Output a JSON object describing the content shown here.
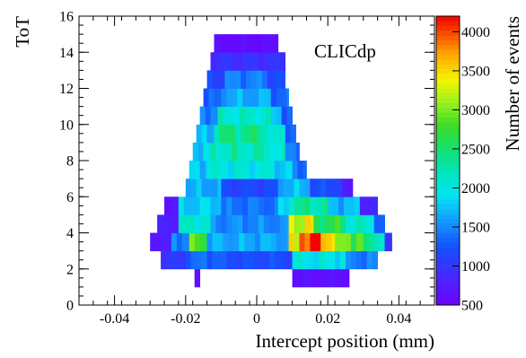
{
  "chart_data": {
    "type": "heatmap",
    "title": "",
    "label": "CLICdp",
    "xlabel": "Intercept position (mm)",
    "ylabel": "ToT",
    "colorbar_label": "Number of events",
    "xlim": [
      -0.05,
      0.05
    ],
    "ylim": [
      0,
      16
    ],
    "zlim": [
      500,
      4200
    ],
    "x_ticks": [
      -0.04,
      -0.02,
      0,
      0.02,
      0.04
    ],
    "x_tick_labels": [
      "-0.04",
      "-0.02",
      "0",
      "0.02",
      "0.04"
    ],
    "y_ticks": [
      0,
      2,
      4,
      6,
      8,
      10,
      12,
      14,
      16
    ],
    "y_tick_labels": [
      "0",
      "2",
      "4",
      "6",
      "8",
      "10",
      "12",
      "14",
      "16"
    ],
    "z_ticks": [
      500,
      1000,
      1500,
      2000,
      2500,
      3000,
      3500,
      4000
    ],
    "z_tick_labels": [
      "500",
      "1000",
      "1500",
      "2000",
      "2500",
      "3000",
      "3500",
      "4000"
    ],
    "bin_width": 0.0015,
    "rows": [
      {
        "tot": 1,
        "segments": [
          {
            "x0": -0.0175,
            "x1": -0.016,
            "v": 650
          },
          {
            "x0": 0.01,
            "x1": 0.026,
            "v": 650
          }
        ]
      },
      {
        "tot": 2,
        "segments": [
          {
            "x0": -0.027,
            "x1": -0.02,
            "v": 1000
          },
          {
            "x0": -0.02,
            "x1": -0.01,
            "v": 1350
          },
          {
            "x0": -0.01,
            "x1": 0.01,
            "v": 1200
          },
          {
            "x0": 0.01,
            "x1": 0.025,
            "v": 1950
          },
          {
            "x0": 0.025,
            "x1": 0.034,
            "v": 1450
          }
        ]
      },
      {
        "tot": 3,
        "segments": [
          {
            "x0": -0.03,
            "x1": -0.024,
            "v": 750
          },
          {
            "x0": -0.024,
            "x1": -0.019,
            "v": 1500
          },
          {
            "x0": -0.019,
            "x1": -0.014,
            "v": 2800
          },
          {
            "x0": -0.014,
            "x1": 0.009,
            "v": 1650
          },
          {
            "x0": 0.009,
            "x1": 0.012,
            "v": 3200
          },
          {
            "x0": 0.012,
            "x1": 0.018,
            "v": 4100
          },
          {
            "x0": 0.018,
            "x1": 0.022,
            "v": 3700
          },
          {
            "x0": 0.022,
            "x1": 0.03,
            "v": 2900
          },
          {
            "x0": 0.03,
            "x1": 0.036,
            "v": 2300
          },
          {
            "x0": 0.036,
            "x1": 0.038,
            "v": 900
          }
        ]
      },
      {
        "tot": 4,
        "segments": [
          {
            "x0": -0.028,
            "x1": -0.022,
            "v": 800
          },
          {
            "x0": -0.022,
            "x1": -0.013,
            "v": 2100
          },
          {
            "x0": -0.013,
            "x1": 0.009,
            "v": 1500
          },
          {
            "x0": 0.009,
            "x1": 0.016,
            "v": 3300
          },
          {
            "x0": 0.016,
            "x1": 0.025,
            "v": 2600
          },
          {
            "x0": 0.025,
            "x1": 0.033,
            "v": 2100
          },
          {
            "x0": 0.033,
            "x1": 0.036,
            "v": 1300
          }
        ]
      },
      {
        "tot": 5,
        "segments": [
          {
            "x0": -0.026,
            "x1": -0.022,
            "v": 700
          },
          {
            "x0": -0.022,
            "x1": -0.01,
            "v": 1800
          },
          {
            "x0": -0.01,
            "x1": 0.006,
            "v": 1400
          },
          {
            "x0": 0.006,
            "x1": 0.009,
            "v": 1800
          },
          {
            "x0": 0.009,
            "x1": 0.02,
            "v": 2300
          },
          {
            "x0": 0.02,
            "x1": 0.029,
            "v": 1700
          },
          {
            "x0": 0.029,
            "x1": 0.034,
            "v": 850
          }
        ]
      },
      {
        "tot": 6,
        "segments": [
          {
            "x0": -0.02,
            "x1": -0.01,
            "v": 1650
          },
          {
            "x0": -0.01,
            "x1": 0.006,
            "v": 1150
          },
          {
            "x0": 0.006,
            "x1": 0.015,
            "v": 1700
          },
          {
            "x0": 0.015,
            "x1": 0.024,
            "v": 1200
          },
          {
            "x0": 0.024,
            "x1": 0.027,
            "v": 700
          }
        ]
      },
      {
        "tot": 7,
        "segments": [
          {
            "x0": -0.019,
            "x1": -0.014,
            "v": 1800
          },
          {
            "x0": -0.014,
            "x1": 0.005,
            "v": 2000
          },
          {
            "x0": 0.005,
            "x1": 0.01,
            "v": 1800
          },
          {
            "x0": 0.01,
            "x1": 0.014,
            "v": 1400
          }
        ]
      },
      {
        "tot": 8,
        "segments": [
          {
            "x0": -0.018,
            "x1": -0.013,
            "v": 1800
          },
          {
            "x0": -0.013,
            "x1": 0.004,
            "v": 2200
          },
          {
            "x0": 0.004,
            "x1": 0.008,
            "v": 2000
          },
          {
            "x0": 0.008,
            "x1": 0.012,
            "v": 1500
          }
        ]
      },
      {
        "tot": 9,
        "segments": [
          {
            "x0": -0.017,
            "x1": -0.012,
            "v": 1700
          },
          {
            "x0": -0.012,
            "x1": 0.003,
            "v": 2400
          },
          {
            "x0": 0.003,
            "x1": 0.008,
            "v": 2000
          },
          {
            "x0": 0.008,
            "x1": 0.011,
            "v": 1400
          }
        ]
      },
      {
        "tot": 10,
        "segments": [
          {
            "x0": -0.016,
            "x1": -0.011,
            "v": 1500
          },
          {
            "x0": -0.011,
            "x1": 0.004,
            "v": 2100
          },
          {
            "x0": 0.004,
            "x1": 0.007,
            "v": 1750
          },
          {
            "x0": 0.007,
            "x1": 0.01,
            "v": 1300
          }
        ]
      },
      {
        "tot": 11,
        "segments": [
          {
            "x0": -0.015,
            "x1": -0.01,
            "v": 1300
          },
          {
            "x0": -0.01,
            "x1": 0.004,
            "v": 1650
          },
          {
            "x0": 0.004,
            "x1": 0.009,
            "v": 1350
          }
        ]
      },
      {
        "tot": 12,
        "segments": [
          {
            "x0": -0.014,
            "x1": -0.009,
            "v": 1150
          },
          {
            "x0": -0.009,
            "x1": 0.003,
            "v": 1450
          },
          {
            "x0": 0.003,
            "x1": 0.008,
            "v": 1200
          }
        ]
      },
      {
        "tot": 13,
        "segments": [
          {
            "x0": -0.013,
            "x1": 0.008,
            "v": 950
          }
        ]
      },
      {
        "tot": 14,
        "segments": [
          {
            "x0": -0.012,
            "x1": 0.006,
            "v": 600
          }
        ]
      }
    ]
  }
}
